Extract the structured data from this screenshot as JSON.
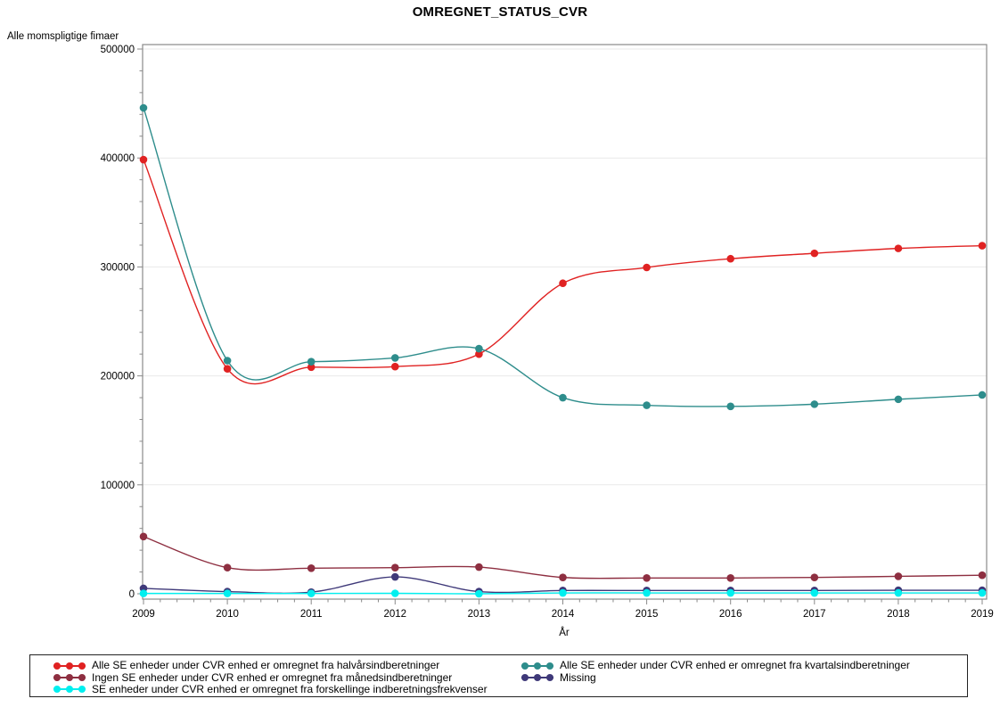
{
  "page": {
    "background": "#ffffff"
  },
  "chart_data": {
    "type": "line",
    "title": "OMREGNET_STATUS_CVR",
    "ylabel": "Alle momspligtige fimaer",
    "xlabel": "År",
    "categories": [
      "2009",
      "2010",
      "2011",
      "2012",
      "2013",
      "2014",
      "2015",
      "2016",
      "2017",
      "2018",
      "2019"
    ],
    "ylim": [
      0,
      500000
    ],
    "y_ticks": [
      0,
      100000,
      200000,
      300000,
      400000,
      500000
    ],
    "y_tick_labels": [
      "0",
      "100000",
      "200000",
      "300000",
      "400000",
      "500000"
    ],
    "minor_y_tick_step": 20000,
    "minor_x_ticks_per_interval": 4,
    "grid": "horizontal-major",
    "legend_position": "bottom-box-two-columns",
    "interpolation": "spline",
    "series": [
      {
        "name": "Alle SE enheder under CVR enhed er omregnet fra halvårsindberetninger",
        "color": "#e02222",
        "legend_column": 0,
        "values": [
          398500,
          206500,
          208000,
          208500,
          220000,
          285000,
          299500,
          307500,
          312500,
          317000,
          319500
        ]
      },
      {
        "name": "Alle SE enheder under CVR enhed er omregnet fra kvartalsindberetninger",
        "color": "#2e8d8c",
        "legend_column": 1,
        "values": [
          446000,
          214000,
          213000,
          216500,
          225000,
          180000,
          173000,
          172000,
          174000,
          178500,
          182500
        ]
      },
      {
        "name": "Ingen SE enheder under CVR enhed er omregnet fra månedsindberetninger",
        "color": "#8e2f41",
        "legend_column": 0,
        "values": [
          52500,
          24000,
          23500,
          24000,
          24500,
          15000,
          14500,
          14500,
          15000,
          16000,
          17000
        ]
      },
      {
        "name": "Missing",
        "color": "#3f3979",
        "legend_column": 1,
        "values": [
          5000,
          2000,
          1500,
          15500,
          2000,
          3000,
          3000,
          3000,
          3000,
          3200,
          3200
        ]
      },
      {
        "name": "SE enheder under CVR enhed er omregnet fra forskellinge indberetningsfrekvenser",
        "color": "#00efef",
        "legend_column": 0,
        "values": [
          300,
          300,
          300,
          400,
          0,
          800,
          800,
          800,
          800,
          800,
          800
        ]
      }
    ],
    "colors": {
      "frame": "#8a8a8a",
      "grid": "#e9e9e9",
      "tick": "#8a8a8a",
      "text": "#000000"
    }
  }
}
